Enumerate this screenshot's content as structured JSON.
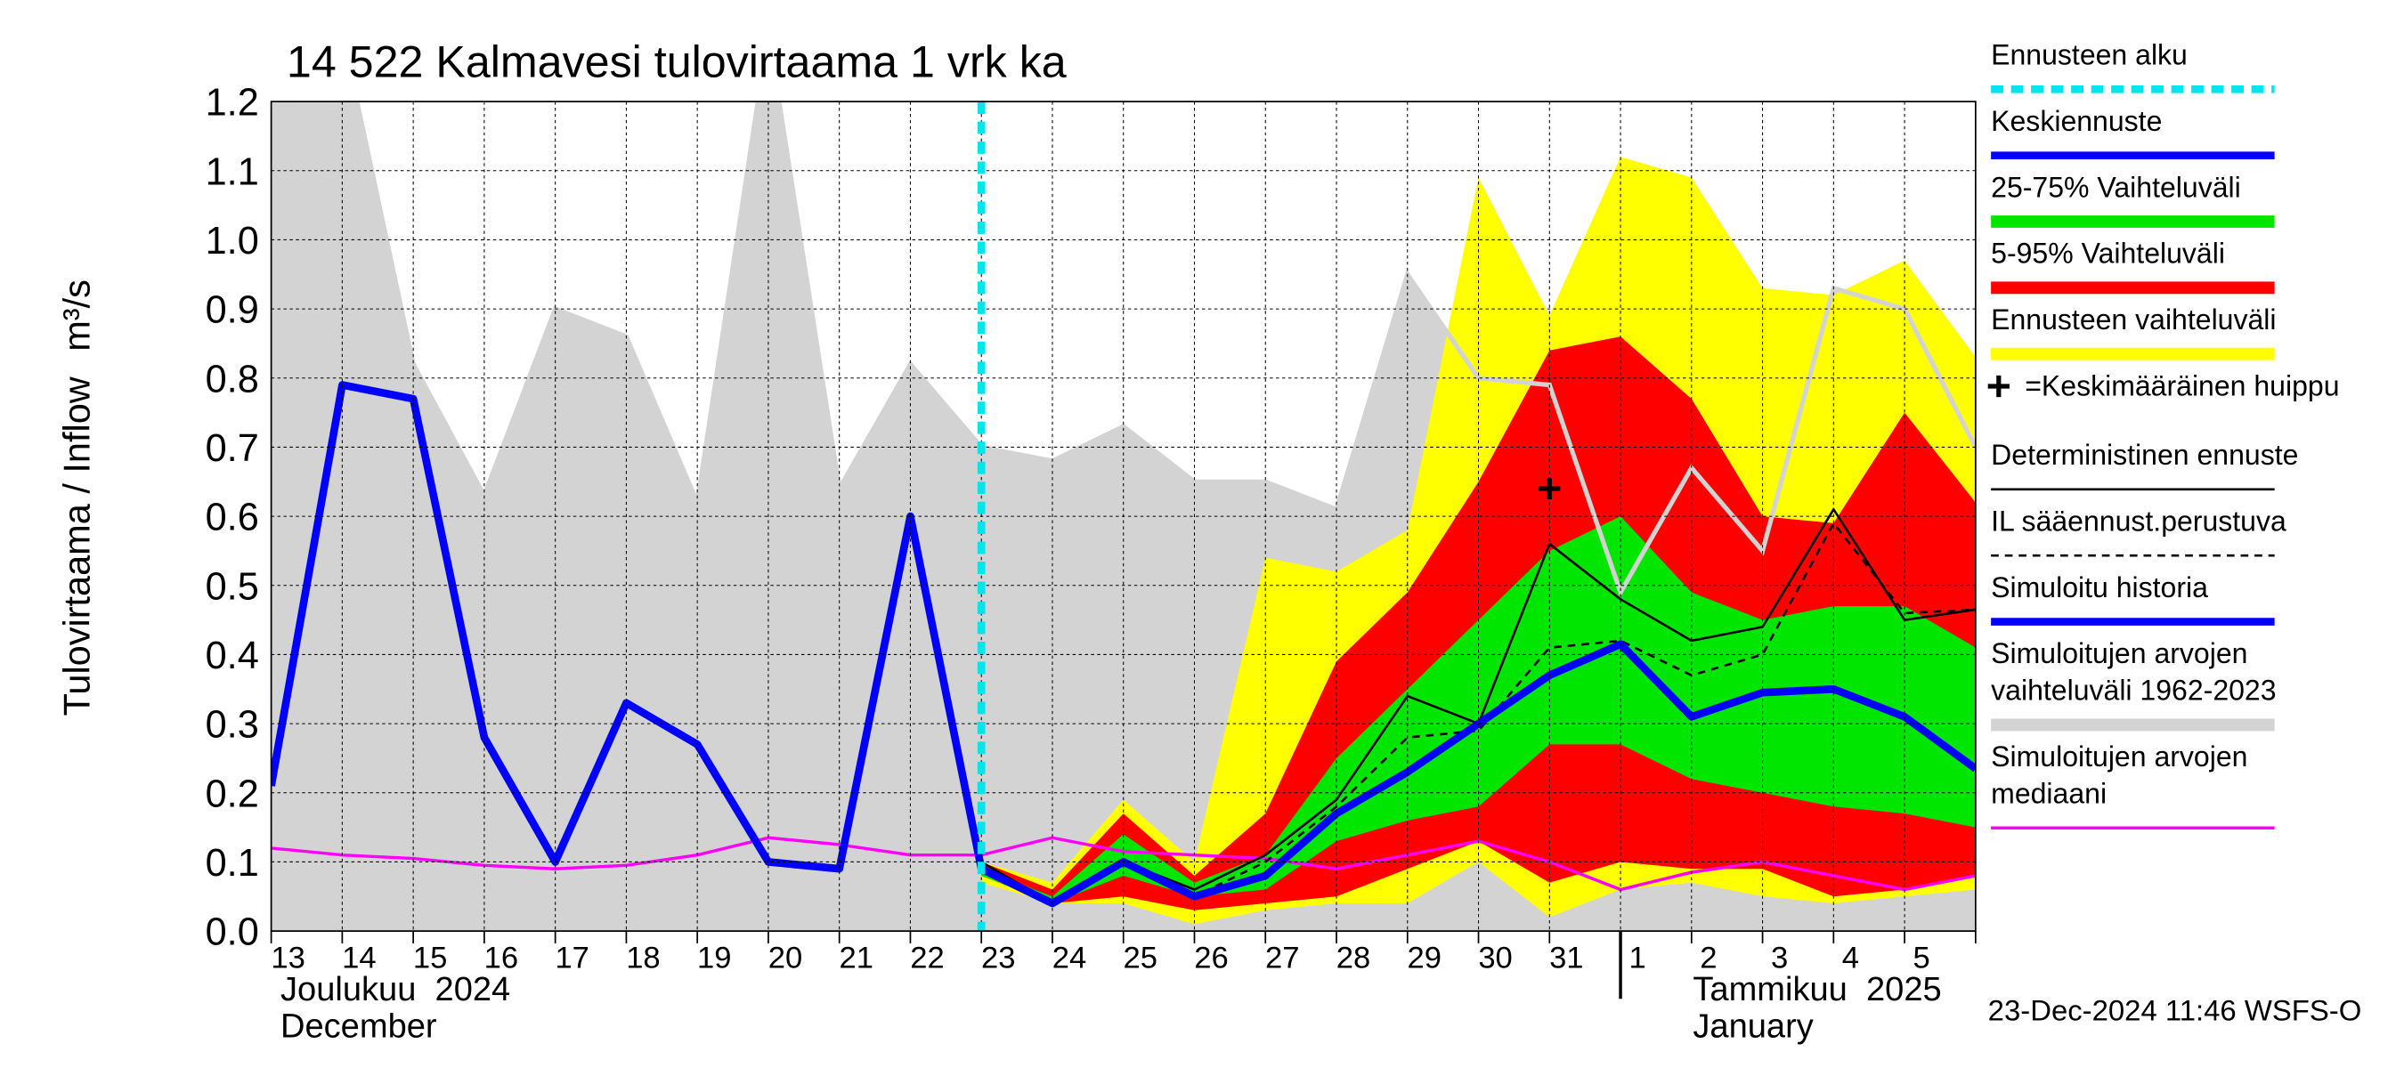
{
  "chart_data": {
    "type": "hydrograph",
    "title": "14 522 Kalmavesi tulovirtaama 1 vrk ka",
    "y_label": "Tulovirtaama / Inflow",
    "y_unit": "m³/s",
    "categories": [
      "13",
      "14",
      "15",
      "16",
      "17",
      "18",
      "19",
      "20",
      "21",
      "22",
      "23",
      "24",
      "25",
      "26",
      "27",
      "28",
      "29",
      "30",
      "31",
      "1",
      "2",
      "3",
      "4",
      "5",
      null
    ],
    "month_labels": [
      {
        "at": "13",
        "lines": [
          "Joulukuu  2024",
          "December"
        ]
      },
      {
        "at": "1",
        "lines": [
          "Tammikuu  2025",
          "January"
        ]
      }
    ],
    "ylim": [
      0,
      1.2
    ],
    "yticks": [
      {
        "value": 0,
        "label": "0.0"
      },
      0.1,
      0.2,
      0.3,
      0.4,
      0.5,
      0.6,
      0.7,
      0.8,
      0.9,
      {
        "value": 1.0,
        "label": "1.0"
      },
      1.1,
      1.2
    ],
    "grid": true,
    "forecast_start": {
      "name": "Ennusteen alku",
      "color": "#00e5ee",
      "x": "23"
    },
    "peak": {
      "name": "=Keskimääräinen huippu",
      "color": "#000000",
      "x": "31",
      "value": 0.64
    },
    "series": [
      {
        "name": "Keskiennuste",
        "kind": "line",
        "color": "#0000ff",
        "width": 5,
        "values": [
          null,
          null,
          null,
          null,
          null,
          null,
          null,
          null,
          null,
          null,
          0.09,
          0.04,
          0.1,
          0.05,
          0.08,
          0.17,
          0.23,
          0.3,
          0.37,
          0.415,
          0.31,
          0.345,
          0.35,
          0.31,
          0.235
        ]
      },
      {
        "name": "25-75% Vaihteluväli",
        "kind": "band",
        "color": "#00e600",
        "upper": [
          null,
          null,
          null,
          null,
          null,
          null,
          null,
          null,
          null,
          null,
          0.09,
          0.05,
          0.14,
          0.07,
          0.11,
          0.25,
          0.35,
          0.45,
          0.55,
          0.6,
          0.49,
          0.45,
          0.47,
          0.47,
          0.41
        ],
        "lower": [
          null,
          null,
          null,
          null,
          null,
          null,
          null,
          null,
          null,
          null,
          0.08,
          0.04,
          0.08,
          0.05,
          0.06,
          0.13,
          0.16,
          0.18,
          0.27,
          0.27,
          0.22,
          0.2,
          0.18,
          0.17,
          0.15
        ]
      },
      {
        "name": "5-95% Vaihteluväli",
        "kind": "band",
        "color": "#ff0000",
        "upper": [
          null,
          null,
          null,
          null,
          null,
          null,
          null,
          null,
          null,
          null,
          0.1,
          0.06,
          0.17,
          0.08,
          0.17,
          0.39,
          0.49,
          0.65,
          0.84,
          0.86,
          0.77,
          0.6,
          0.59,
          0.75,
          0.62
        ],
        "lower": [
          null,
          null,
          null,
          null,
          null,
          null,
          null,
          null,
          null,
          null,
          0.08,
          0.04,
          0.05,
          0.03,
          0.04,
          0.05,
          0.09,
          0.13,
          0.07,
          0.1,
          0.09,
          0.09,
          0.05,
          0.06,
          0.08
        ]
      },
      {
        "name": "Ennusteen vaihteluväli",
        "kind": "band",
        "color": "#ffff00",
        "upper": [
          null,
          null,
          null,
          null,
          null,
          null,
          null,
          null,
          null,
          null,
          0.1,
          0.07,
          0.19,
          0.1,
          0.54,
          0.52,
          0.58,
          1.09,
          0.89,
          1.12,
          1.09,
          0.93,
          0.92,
          0.97,
          0.83
        ],
        "lower": [
          null,
          null,
          null,
          null,
          null,
          null,
          null,
          null,
          null,
          null,
          0.07,
          0.04,
          0.04,
          0.01,
          0.03,
          0.04,
          0.04,
          0.1,
          0.02,
          0.06,
          0.07,
          0.05,
          0.04,
          0.05,
          0.06
        ]
      },
      {
        "name": "Deterministinen ennuste",
        "kind": "line",
        "color": "#000000",
        "width": 1.5,
        "values": [
          null,
          null,
          null,
          null,
          null,
          null,
          null,
          null,
          null,
          null,
          0.1,
          0.04,
          0.1,
          0.06,
          0.11,
          0.19,
          0.34,
          0.3,
          0.56,
          0.48,
          0.42,
          0.44,
          0.61,
          0.45,
          0.465
        ]
      },
      {
        "name": "IL sääennust.perustuva",
        "kind": "line",
        "color": "#000000",
        "width": 1.5,
        "dash": true,
        "values": [
          null,
          null,
          null,
          null,
          null,
          null,
          null,
          null,
          null,
          null,
          0.09,
          0.04,
          0.1,
          0.05,
          0.1,
          0.18,
          0.28,
          0.29,
          0.41,
          0.42,
          0.37,
          0.4,
          0.59,
          0.46,
          0.465
        ]
      },
      {
        "name": "Simuloitu historia",
        "kind": "line",
        "color": "#0000ff",
        "width": 5,
        "values": [
          0.21,
          0.79,
          0.77,
          0.28,
          0.1,
          0.33,
          0.27,
          0.1,
          0.09,
          0.6,
          0.09,
          null,
          null,
          null,
          null,
          null,
          null,
          null,
          null,
          null,
          null,
          null,
          null,
          null,
          null
        ]
      },
      {
        "name": "Simuloitujen arvojen vaihteluväli 1962-2023",
        "legend_lines": [
          "Simuloitujen arvojen",
          "vaihteluväli 1962-2023"
        ],
        "kind": "band",
        "color": "#d3d3d3",
        "upper": [
          1.3,
          1.3,
          0.82,
          0.63,
          0.9,
          0.86,
          0.62,
          1.3,
          0.64,
          0.82,
          0.7,
          0.68,
          0.73,
          0.65,
          0.65,
          0.61,
          0.95,
          0.8,
          0.79,
          0.49,
          0.67,
          0.55,
          0.93,
          0.9,
          0.7
        ],
        "lower": [
          0,
          0,
          0,
          0,
          0,
          0,
          0,
          0,
          0,
          0,
          0,
          0,
          0,
          0,
          0,
          0,
          0,
          0,
          0,
          0,
          0,
          0,
          0,
          0,
          0
        ]
      },
      {
        "name": "Simuloitujen arvojen mediaani",
        "legend_lines": [
          "Simuloitujen arvojen",
          "mediaani"
        ],
        "kind": "line",
        "color": "#ff00ff",
        "width": 2,
        "values": [
          0.12,
          0.11,
          0.105,
          0.095,
          0.09,
          0.095,
          0.11,
          0.135,
          0.125,
          0.11,
          0.11,
          0.135,
          0.115,
          0.11,
          0.105,
          0.09,
          0.11,
          0.13,
          0.1,
          0.06,
          0.085,
          0.1,
          0.08,
          0.06,
          0.08
        ]
      }
    ],
    "footer": "23-Dec-2024 11:46 WSFS-O"
  }
}
